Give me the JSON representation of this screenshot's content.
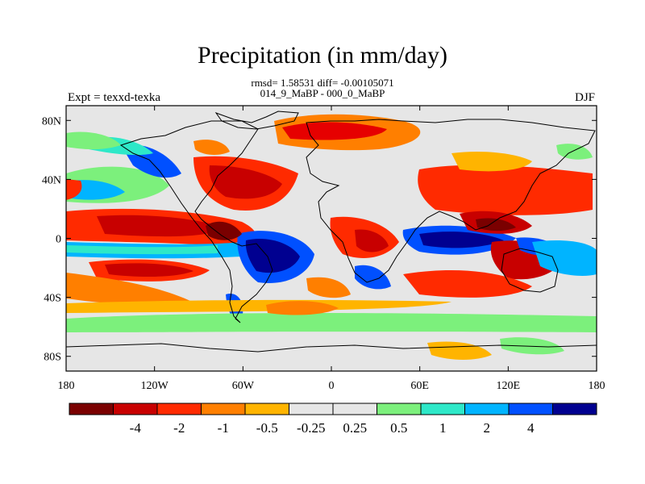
{
  "title": "Precipitation (in mm/day)",
  "stats_line": "rmsd= 1.58531 diff= -0.00105071",
  "comparison": "014_9_MaBP - 000_0_MaBP",
  "experiment": "Expt = texxd-texka",
  "season": "DJF",
  "lon_ticks": [
    "180",
    "120W",
    "60W",
    "0",
    "60E",
    "120E",
    "180"
  ],
  "lat_ticks": [
    "80N",
    "40N",
    "0",
    "40S",
    "80S"
  ],
  "colorbar": {
    "colors": [
      "#7a0000",
      "#c80000",
      "#ff2a00",
      "#ff7f00",
      "#ffb400",
      "#e6e6e6",
      "#e6e6e6",
      "#7cf07c",
      "#2ee8c8",
      "#00b4ff",
      "#0050ff",
      "#000090"
    ],
    "labels": [
      "-4",
      "-2",
      "-1",
      "-0.5",
      "-0.25",
      "0.25",
      "0.5",
      "1",
      "2",
      "4"
    ]
  }
}
